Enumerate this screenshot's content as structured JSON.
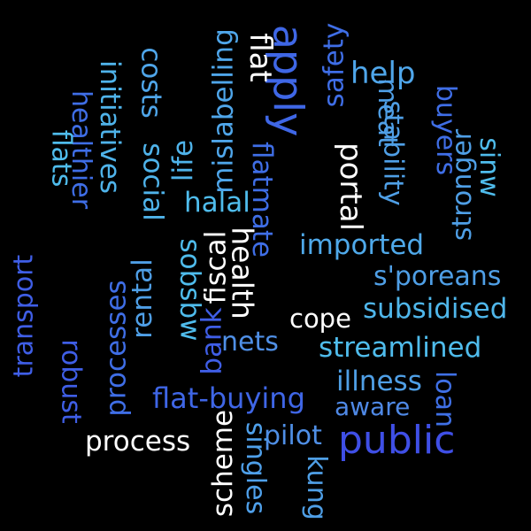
{
  "colors": {
    "background": "#000000",
    "white": "#ffffff",
    "light_blue": "#4fb3ea",
    "sky_blue": "#3f8fe6",
    "royal_blue": "#3f5ee6",
    "cyan": "#5ad0e8"
  },
  "words": [
    {
      "text": "public",
      "color": "#3f4fe6"
    },
    {
      "text": "apply",
      "color": "#3f67e6"
    },
    {
      "text": "flat-buying",
      "color": "#3f66e6"
    },
    {
      "text": "process",
      "color": "#ffffff"
    },
    {
      "text": "health",
      "color": "#ffffff"
    },
    {
      "text": "streamlined",
      "color": "#4fbcec"
    },
    {
      "text": "subsidised",
      "color": "#4fb6ea"
    },
    {
      "text": "s'poreans",
      "color": "#4f9fe6"
    },
    {
      "text": "imported",
      "color": "#4fa9ea"
    },
    {
      "text": "illness",
      "color": "#4f9fe6"
    },
    {
      "text": "aware",
      "color": "#4f89e6"
    },
    {
      "text": "pilot",
      "color": "#4f8fe6"
    },
    {
      "text": "nets",
      "color": "#4f8fe6"
    },
    {
      "text": "cope",
      "color": "#ffffff"
    },
    {
      "text": "halal",
      "color": "#4fbcec"
    },
    {
      "text": "help",
      "color": "#4fa6ea"
    },
    {
      "text": "flat",
      "color": "#ffffff"
    },
    {
      "text": "fiscal",
      "color": "#ffffff"
    },
    {
      "text": "bank",
      "color": "#3f5ee6"
    },
    {
      "text": "scheme",
      "color": "#ffffff"
    },
    {
      "text": "singles",
      "color": "#4fa0ea"
    },
    {
      "text": "kung",
      "color": "#4f9fe6"
    },
    {
      "text": "loan",
      "color": "#3f70e6"
    },
    {
      "text": "portal",
      "color": "#ffffff"
    },
    {
      "text": "flatmate",
      "color": "#3f6ee6"
    },
    {
      "text": "mislabelling",
      "color": "#4fa6ea"
    },
    {
      "text": "life",
      "color": "#4fb3ea"
    },
    {
      "text": "social",
      "color": "#4fb3ea"
    },
    {
      "text": "costs",
      "color": "#4fa6ea"
    },
    {
      "text": "initiatives",
      "color": "#4fb3ea"
    },
    {
      "text": "healthier",
      "color": "#3f6ee6"
    },
    {
      "text": "flats",
      "color": "#4fbcec"
    },
    {
      "text": "transport",
      "color": "#3f5ee6"
    },
    {
      "text": "robust",
      "color": "#3f5ee6"
    },
    {
      "text": "processes",
      "color": "#3f6ee6"
    },
    {
      "text": "rental",
      "color": "#4f9fe6"
    },
    {
      "text": "sobsbw",
      "color": "#4fbcec"
    },
    {
      "text": "safety",
      "color": "#3f6ee6"
    },
    {
      "text": "meat",
      "color": "#4f9fe6"
    },
    {
      "text": "stability",
      "color": "#4f9fe6"
    },
    {
      "text": "buyers",
      "color": "#3f6ee6"
    },
    {
      "text": "stronger",
      "color": "#4f9fe6"
    },
    {
      "text": "sinw",
      "color": "#4fbcec"
    }
  ]
}
